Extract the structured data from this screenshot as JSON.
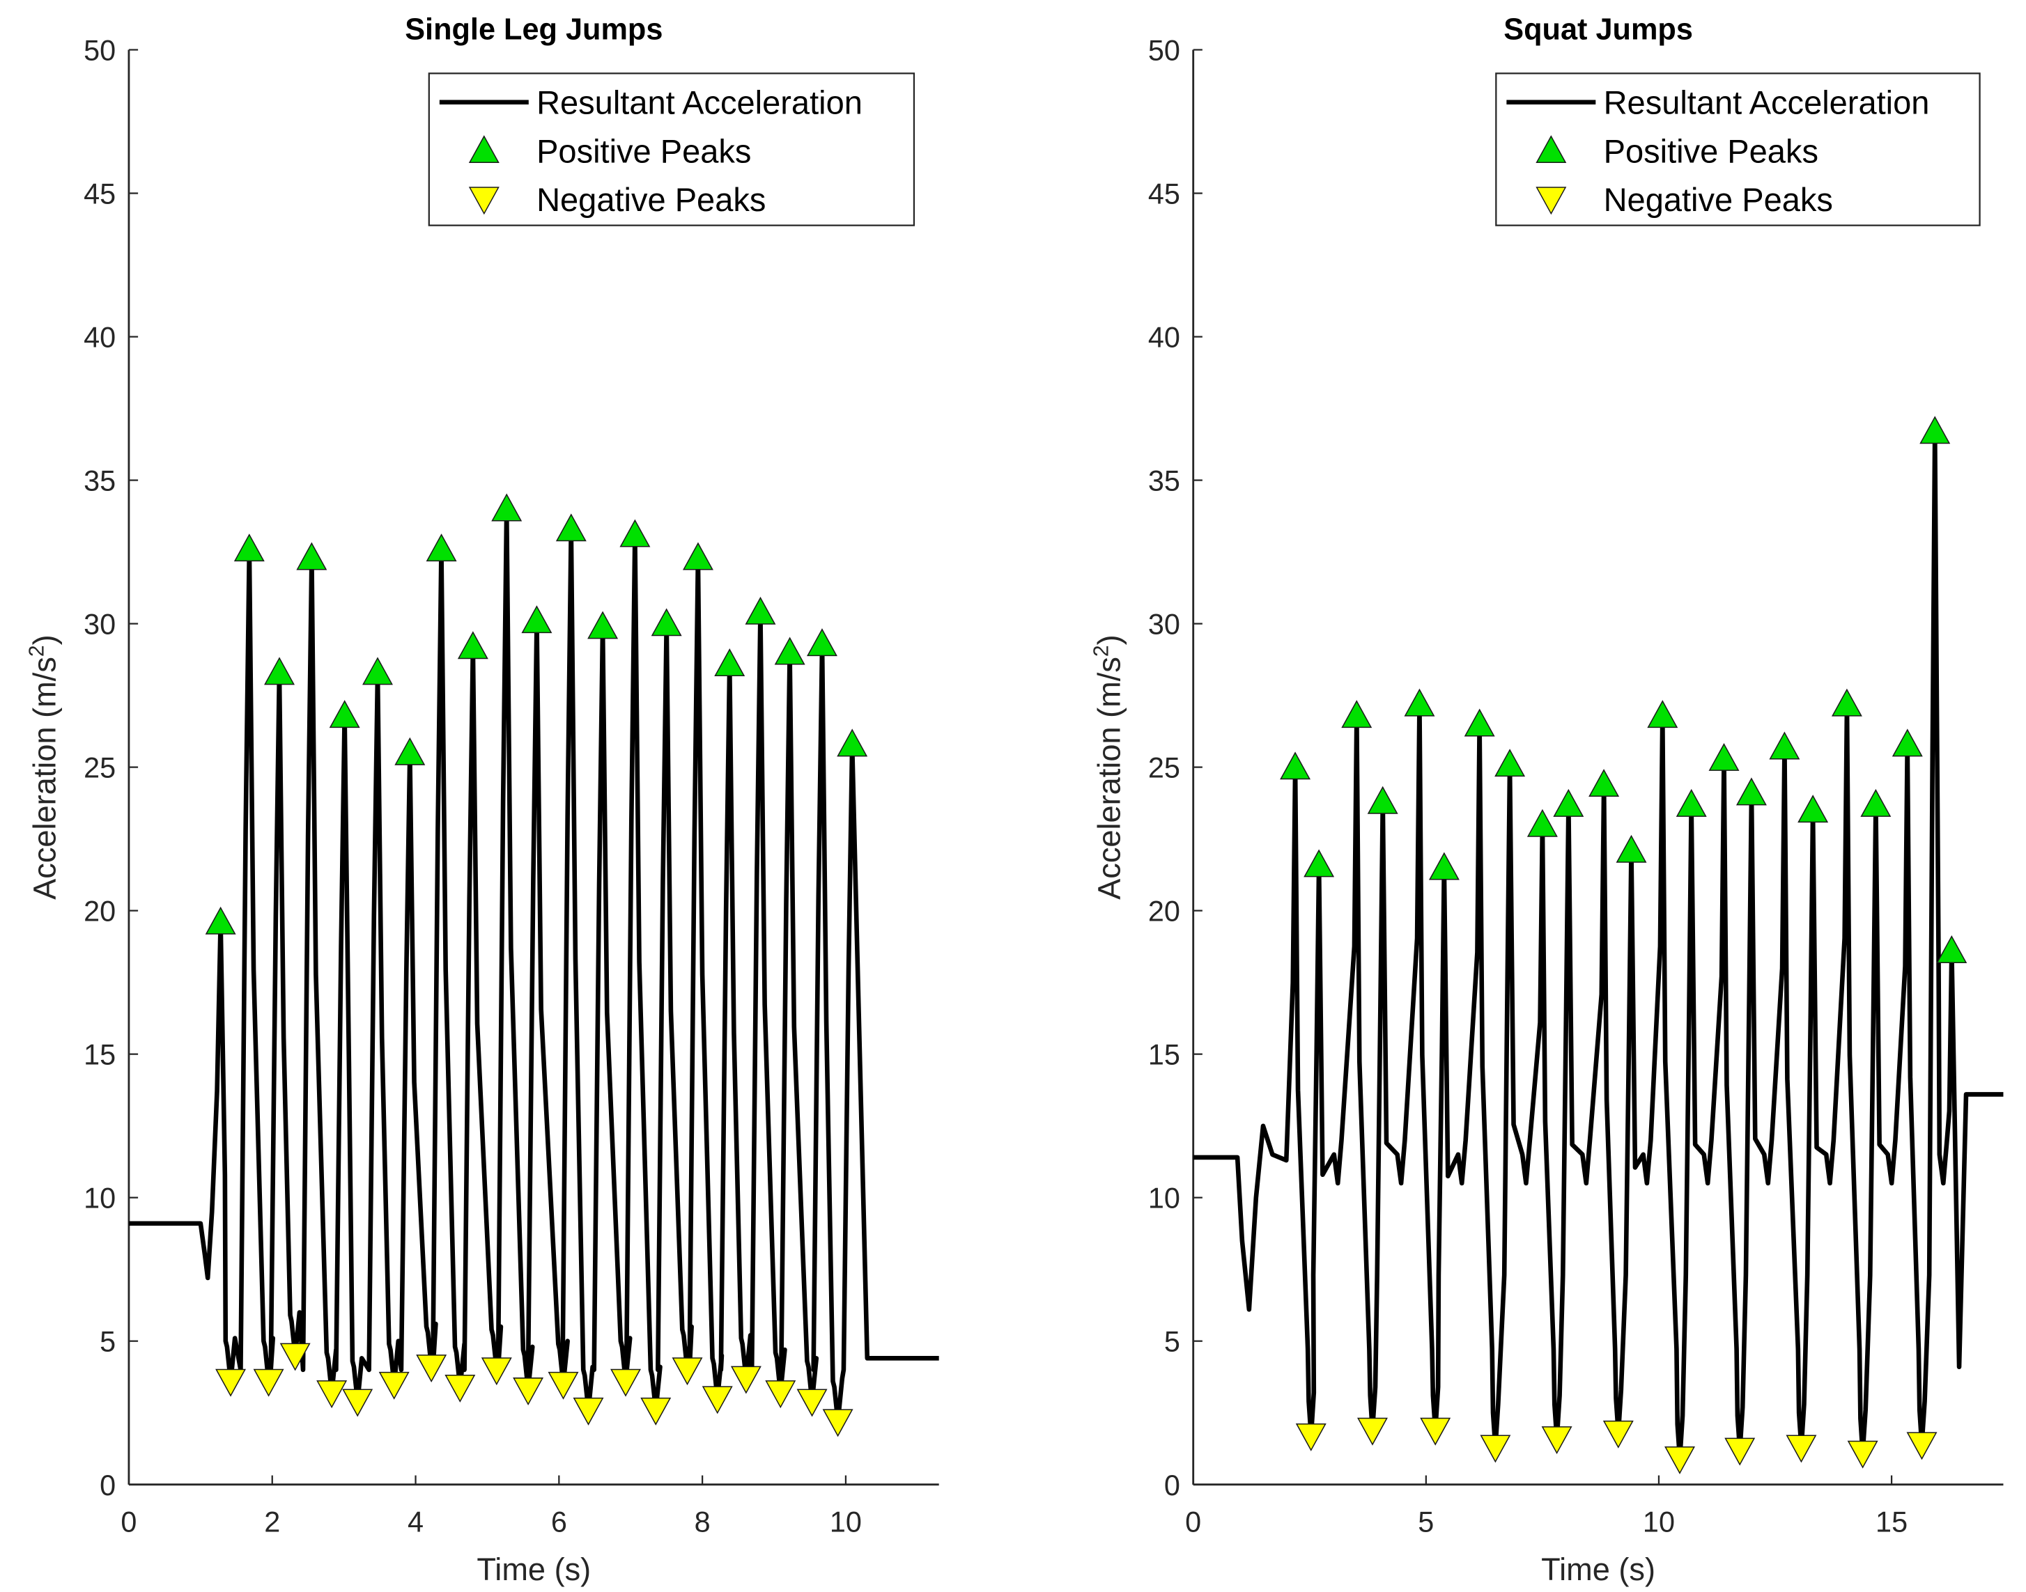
{
  "chart_data": [
    {
      "type": "line",
      "title": "Single Leg Jumps",
      "xlabel": "Time (s)",
      "ylabel": "Acceleration (m/s",
      "ylabel_sup": "2",
      "ylabel_end": ")",
      "xlim": [
        0,
        11.3
      ],
      "ylim": [
        0,
        50
      ],
      "xticks": [
        0,
        2,
        4,
        6,
        8,
        10
      ],
      "yticks": [
        0,
        5,
        10,
        15,
        20,
        25,
        30,
        35,
        40,
        45,
        50
      ],
      "grid": false,
      "legend_position": "top-right",
      "legend": [
        "Resultant Acceleration",
        "Positive Peaks",
        "Negative Peaks"
      ],
      "line_start": [
        [
          0,
          9.1
        ],
        [
          1.0,
          9.1
        ],
        [
          1.06,
          8.0
        ],
        [
          1.1,
          7.2
        ],
        [
          1.16,
          9.5
        ]
      ],
      "line_end": [
        [
          10.3,
          4.4
        ],
        [
          11.3,
          4.4
        ]
      ],
      "between_peak_level": 5,
      "positive_peaks": [
        [
          1.28,
          19.6
        ],
        [
          1.68,
          32.6
        ],
        [
          2.1,
          28.3
        ],
        [
          2.55,
          32.3
        ],
        [
          3.01,
          26.8
        ],
        [
          3.47,
          28.3
        ],
        [
          3.92,
          25.5
        ],
        [
          4.36,
          32.6
        ],
        [
          4.8,
          29.2
        ],
        [
          5.27,
          34.0
        ],
        [
          5.69,
          30.1
        ],
        [
          6.17,
          33.3
        ],
        [
          6.61,
          29.9
        ],
        [
          7.06,
          33.1
        ],
        [
          7.5,
          30.0
        ],
        [
          7.94,
          32.3
        ],
        [
          8.38,
          28.6
        ],
        [
          8.81,
          30.4
        ],
        [
          9.22,
          29.0
        ],
        [
          9.67,
          29.3
        ],
        [
          10.09,
          25.8
        ]
      ],
      "negative_peaks": [
        [
          1.42,
          3.6
        ],
        [
          1.95,
          3.6
        ],
        [
          2.32,
          4.5
        ],
        [
          2.83,
          3.2
        ],
        [
          3.19,
          2.9
        ],
        [
          3.7,
          3.5
        ],
        [
          4.22,
          4.1
        ],
        [
          4.62,
          3.4
        ],
        [
          5.13,
          4.0
        ],
        [
          5.57,
          3.3
        ],
        [
          6.06,
          3.5
        ],
        [
          6.41,
          2.6
        ],
        [
          6.93,
          3.6
        ],
        [
          7.35,
          2.6
        ],
        [
          7.79,
          4.0
        ],
        [
          8.21,
          3.0
        ],
        [
          8.61,
          3.7
        ],
        [
          9.09,
          3.2
        ],
        [
          9.53,
          2.9
        ],
        [
          9.89,
          2.2
        ]
      ]
    },
    {
      "type": "line",
      "title": "Squat Jumps",
      "xlabel": "Time (s)",
      "ylabel": "Acceleration (m/s",
      "ylabel_sup": "2",
      "ylabel_end": ")",
      "xlim": [
        0,
        17.4
      ],
      "ylim": [
        0,
        50
      ],
      "xticks": [
        0,
        5,
        10,
        15
      ],
      "yticks": [
        0,
        5,
        10,
        15,
        20,
        25,
        30,
        35,
        40,
        45,
        50
      ],
      "grid": false,
      "legend_position": "top-right",
      "legend": [
        "Resultant Acceleration",
        "Positive Peaks",
        "Negative Peaks"
      ],
      "line_start": [
        [
          0,
          11.4
        ],
        [
          0.95,
          11.4
        ],
        [
          1.05,
          8.5
        ],
        [
          1.2,
          6.1
        ],
        [
          1.35,
          10
        ],
        [
          1.5,
          12.5
        ],
        [
          1.7,
          11.5
        ],
        [
          2.0,
          11.3
        ]
      ],
      "line_end": [
        [
          16.45,
          4.1
        ],
        [
          16.6,
          13.6
        ],
        [
          17.4,
          13.6
        ]
      ],
      "between_peak_level": 10.5,
      "positive_peaks": [
        [
          2.19,
          25.0
        ],
        [
          2.7,
          21.6
        ],
        [
          3.51,
          26.8
        ],
        [
          4.07,
          23.8
        ],
        [
          4.86,
          27.2
        ],
        [
          5.39,
          21.5
        ],
        [
          6.15,
          26.5
        ],
        [
          6.8,
          25.1
        ],
        [
          7.5,
          23.0
        ],
        [
          8.06,
          23.7
        ],
        [
          8.82,
          24.4
        ],
        [
          9.41,
          22.1
        ],
        [
          10.08,
          26.8
        ],
        [
          10.7,
          23.7
        ],
        [
          11.4,
          25.3
        ],
        [
          11.99,
          24.1
        ],
        [
          12.7,
          25.7
        ],
        [
          13.31,
          23.5
        ],
        [
          14.04,
          27.2
        ],
        [
          14.66,
          23.7
        ],
        [
          15.34,
          25.8
        ],
        [
          15.93,
          36.7
        ],
        [
          16.29,
          18.6
        ]
      ],
      "negative_peaks": [
        [
          2.53,
          1.7
        ],
        [
          3.85,
          1.9
        ],
        [
          5.2,
          1.9
        ],
        [
          6.49,
          1.3
        ],
        [
          7.81,
          1.6
        ],
        [
          9.13,
          1.8
        ],
        [
          10.45,
          0.9
        ],
        [
          11.74,
          1.2
        ],
        [
          13.06,
          1.3
        ],
        [
          14.38,
          1.1
        ],
        [
          15.65,
          1.4
        ]
      ]
    }
  ],
  "colors": {
    "line": "#000000",
    "positive": "#00e000",
    "negative": "#ffff00",
    "axis": "#262626"
  }
}
